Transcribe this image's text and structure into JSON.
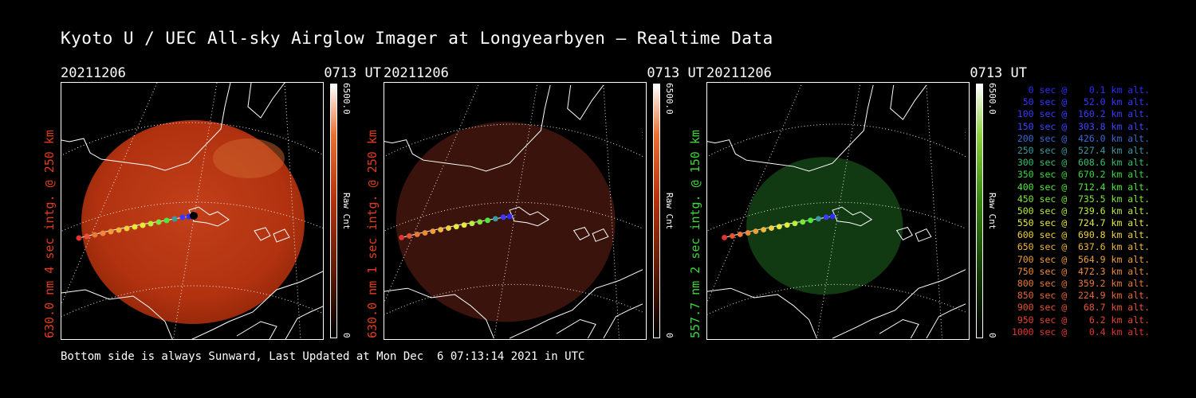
{
  "title": "Kyoto U / UEC All-sky Airglow Imager at Longyearbyen — Realtime Data",
  "footer": "Bottom side is always Sunward, Last Updated at Mon Dec  6 07:13:14 2021 in UTC",
  "panels": [
    {
      "date": "20211206",
      "time": "0713 UT",
      "label": "630.0 nm 4 sec intg. @ 250 km",
      "label_color": "#e23b1c",
      "colorbar_max": "6500.0",
      "colorbar_unit": "Raw Cnt",
      "colorbar_min": "0",
      "colorbar_color": "#e24a10",
      "image_color": "#b23210"
    },
    {
      "date": "20211206",
      "time": "0713 UT",
      "label": "630.0 nm 1 sec intg. @ 250 km",
      "label_color": "#e23b1c",
      "colorbar_max": "6500.0",
      "colorbar_unit": "Raw Cnt",
      "colorbar_min": "0",
      "colorbar_color": "#e24a10",
      "image_color": "#3a140c"
    },
    {
      "date": "20211206",
      "time": "0713 UT",
      "label": "557.7 nm 2 sec intg. @ 150 km",
      "label_color": "#3fd63a",
      "colorbar_max": "6500.0",
      "colorbar_unit": "Raw Cnt",
      "colorbar_min": "0",
      "colorbar_color": "#3fa01a",
      "image_color": "#123a12"
    }
  ],
  "legend": [
    {
      "text": "   0 sec @    0.1 km alt.",
      "color": "#2c2cff"
    },
    {
      "text": "  50 sec @   52.0 km alt.",
      "color": "#3636ff"
    },
    {
      "text": " 100 sec @  160.2 km alt.",
      "color": "#3a3aff"
    },
    {
      "text": " 150 sec @  303.8 km alt.",
      "color": "#3f44ff"
    },
    {
      "text": " 200 sec @  426.0 km alt.",
      "color": "#3a6ad6"
    },
    {
      "text": " 250 sec @  527.4 km alt.",
      "color": "#3a9aa0"
    },
    {
      "text": " 300 sec @  608.6 km alt.",
      "color": "#34c070"
    },
    {
      "text": " 350 sec @  670.2 km alt.",
      "color": "#3ad840"
    },
    {
      "text": " 400 sec @  712.4 km alt.",
      "color": "#4ee83a"
    },
    {
      "text": " 450 sec @  735.5 km alt.",
      "color": "#7ee83a"
    },
    {
      "text": " 500 sec @  739.6 km alt.",
      "color": "#b8ee3c"
    },
    {
      "text": " 550 sec @  724.7 km alt.",
      "color": "#e6ec3c"
    },
    {
      "text": " 600 sec @  690.8 km alt.",
      "color": "#f2d23a"
    },
    {
      "text": " 650 sec @  637.6 km alt.",
      "color": "#f0b63a"
    },
    {
      "text": " 700 sec @  564.9 km alt.",
      "color": "#ee9e3a"
    },
    {
      "text": " 750 sec @  472.3 km alt.",
      "color": "#ec8a3a"
    },
    {
      "text": " 800 sec @  359.2 km alt.",
      "color": "#ea7838"
    },
    {
      "text": " 850 sec @  224.9 km alt.",
      "color": "#e86636"
    },
    {
      "text": " 900 sec @   68.7 km alt.",
      "color": "#e65434"
    },
    {
      "text": " 950 sec @    6.2 km alt.",
      "color": "#e44432"
    },
    {
      "text": "1000 sec @    0.4 km alt.",
      "color": "#e23430"
    }
  ]
}
